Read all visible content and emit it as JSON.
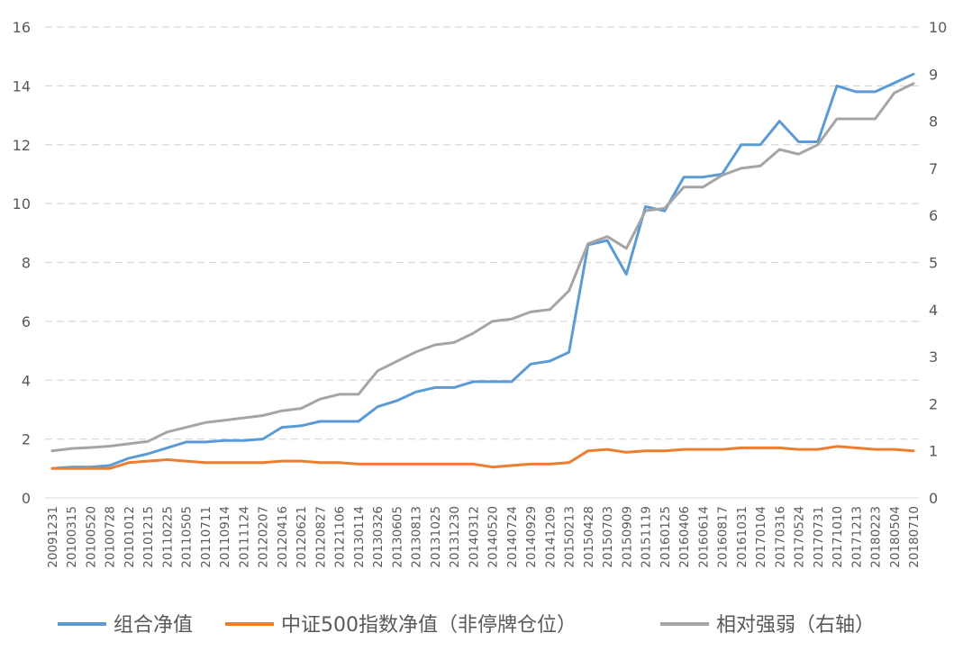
{
  "chart_data": {
    "type": "line",
    "grid": true,
    "legend_position": "bottom",
    "ylim_left": [
      0,
      16
    ],
    "ylim_right": [
      0,
      10
    ],
    "yticks_left": [
      "0",
      "2",
      "4",
      "6",
      "8",
      "10",
      "12",
      "14",
      "16"
    ],
    "yticks_right": [
      "0",
      "1",
      "2",
      "3",
      "4",
      "5",
      "6",
      "7",
      "8",
      "9",
      "10"
    ],
    "x": [
      "20091231",
      "20100315",
      "20100520",
      "20100728",
      "20101012",
      "20101215",
      "20110225",
      "20110505",
      "20110711",
      "20110914",
      "20111124",
      "20120207",
      "20120416",
      "20120621",
      "20120827",
      "20121106",
      "20130114",
      "20130326",
      "20130605",
      "20130813",
      "20131025",
      "20131230",
      "20140312",
      "20140520",
      "20140724",
      "20140929",
      "20141209",
      "20150213",
      "20150428",
      "20150703",
      "20150909",
      "20151119",
      "20160125",
      "20160406",
      "20160614",
      "20160817",
      "20161031",
      "20170104",
      "20170316",
      "20170524",
      "20170731",
      "20171010",
      "20171213",
      "20180223",
      "20180504",
      "20180710"
    ],
    "series": [
      {
        "name": "组合净值",
        "axis": "left",
        "color": "#5B9BD5",
        "values": [
          1.0,
          1.05,
          1.05,
          1.1,
          1.35,
          1.5,
          1.7,
          1.9,
          1.9,
          1.95,
          1.95,
          2.0,
          2.4,
          2.45,
          2.6,
          2.6,
          2.6,
          3.1,
          3.3,
          3.6,
          3.75,
          3.75,
          3.95,
          3.95,
          3.95,
          4.55,
          4.65,
          4.95,
          8.6,
          8.75,
          7.6,
          9.9,
          9.75,
          10.9,
          10.9,
          11.0,
          12.0,
          12.0,
          12.8,
          12.1,
          12.1,
          14.0,
          13.8,
          13.8,
          14.1,
          14.4
        ]
      },
      {
        "name": "中证500指数净值（非停牌仓位）",
        "axis": "left",
        "color": "#ED7D31",
        "values": [
          1.0,
          1.0,
          1.0,
          1.0,
          1.2,
          1.25,
          1.3,
          1.25,
          1.2,
          1.2,
          1.2,
          1.2,
          1.25,
          1.25,
          1.2,
          1.2,
          1.15,
          1.15,
          1.15,
          1.15,
          1.15,
          1.15,
          1.15,
          1.05,
          1.1,
          1.15,
          1.15,
          1.2,
          1.6,
          1.65,
          1.55,
          1.6,
          1.6,
          1.65,
          1.65,
          1.65,
          1.7,
          1.7,
          1.7,
          1.65,
          1.65,
          1.75,
          1.7,
          1.65,
          1.65,
          1.6
        ]
      },
      {
        "name": "相对强弱（右轴）",
        "axis": "right",
        "color": "#A5A5A5",
        "values": [
          1.0,
          1.05,
          1.07,
          1.1,
          1.15,
          1.2,
          1.4,
          1.5,
          1.6,
          1.65,
          1.7,
          1.75,
          1.85,
          1.9,
          2.1,
          2.2,
          2.2,
          2.7,
          2.9,
          3.1,
          3.25,
          3.3,
          3.5,
          3.75,
          3.8,
          3.95,
          4.0,
          4.4,
          5.4,
          5.55,
          5.3,
          6.1,
          6.15,
          6.6,
          6.6,
          6.85,
          7.0,
          7.05,
          7.4,
          7.3,
          7.5,
          8.05,
          8.05,
          8.05,
          8.6,
          8.8
        ]
      }
    ]
  }
}
